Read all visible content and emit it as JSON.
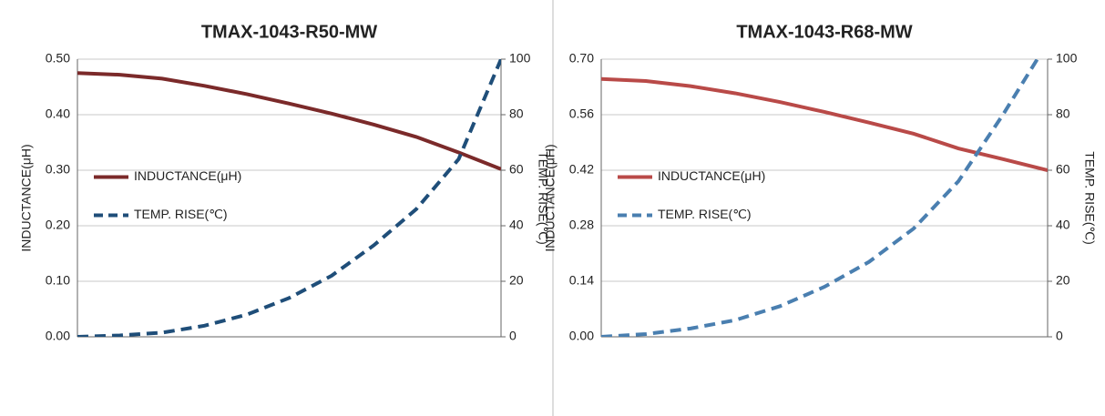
{
  "chart_data": [
    {
      "type": "line",
      "title": "TMAX-1043-R50-MW",
      "categories": [
        null,
        null,
        null,
        null,
        null,
        null,
        null,
        null,
        null,
        null,
        null
      ],
      "y_label": "INDUCTANCE(μH)",
      "y2_label": "TEMP. RISE(℃)",
      "ylim": [
        0,
        0.5
      ],
      "yticks": [
        {
          "value": 0,
          "label": "0.00"
        },
        {
          "value": 0.1,
          "label": "0.10"
        },
        {
          "value": 0.2,
          "label": "0.20"
        },
        {
          "value": 0.3,
          "label": "0.30"
        },
        {
          "value": 0.4,
          "label": "0.40"
        },
        {
          "value": 0.5,
          "label": "0.50"
        }
      ],
      "y2lim": [
        0,
        100
      ],
      "y2ticks": [
        0,
        20,
        40,
        60,
        80,
        100
      ],
      "grid": true,
      "legend": "left",
      "series": [
        {
          "name": "INDUCTANCE(μH)",
          "color": "#7b2a2a",
          "dash": false,
          "values": [
            0.475,
            0.472,
            0.465,
            0.452,
            0.437,
            0.42,
            0.402,
            0.382,
            0.36,
            0.332,
            0.302
          ]
        },
        {
          "name": "TEMP. RISE(℃)",
          "color": "#1f4e79",
          "dash": true,
          "axis": "y2",
          "values": [
            0,
            0.5,
            1.5,
            4,
            8,
            14,
            22,
            33,
            46,
            64,
            100
          ]
        }
      ]
    },
    {
      "type": "line",
      "title": "TMAX-1043-R68-MW",
      "categories": [
        null,
        null,
        null,
        null,
        null,
        null,
        null,
        null,
        null,
        null,
        null
      ],
      "y_label": "INDUCTANCE(μH)",
      "y2_label": "TEMP. RISE(℃)",
      "ylim": [
        0,
        0.7
      ],
      "yticks": [
        {
          "value": 0,
          "label": "0.00"
        },
        0.14,
        0.28,
        0.42,
        0.56,
        {
          "value": 0.7,
          "label": "0.70"
        }
      ],
      "y2lim": [
        0,
        100
      ],
      "y2ticks": [
        0,
        20,
        40,
        60,
        80,
        100
      ],
      "grid": true,
      "legend": "left",
      "series": [
        {
          "name": "INDUCTANCE(μH)",
          "color": "#b94a48",
          "dash": false,
          "values": [
            0.65,
            0.645,
            0.632,
            0.614,
            0.592,
            0.567,
            0.54,
            0.512,
            0.475,
            0.448,
            0.42
          ]
        },
        {
          "name": "TEMP. RISE(℃)",
          "color": "#4a7fb0",
          "dash": true,
          "axis": "y2",
          "values": [
            0,
            1,
            3,
            6,
            11,
            18,
            27,
            39,
            56,
            80,
            106
          ]
        }
      ]
    }
  ]
}
